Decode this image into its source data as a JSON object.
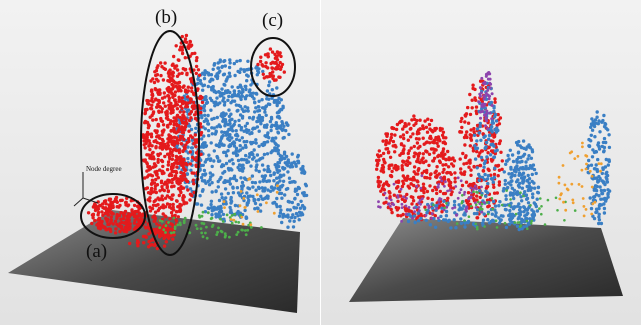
{
  "left_panel": {
    "axis_label": "Node degree",
    "annotations": [
      {
        "id": "a",
        "label": "(a)"
      },
      {
        "id": "b",
        "label": "(b)"
      },
      {
        "id": "c",
        "label": "(c)"
      }
    ]
  },
  "colors": {
    "background": "#eeeeee",
    "surface_dark": "#3a3a3a",
    "surface_light": "#a8a8a8",
    "cluster_red": "#e41a1c",
    "cluster_blue": "#3a7fc4",
    "accent_green": "#4daf4a",
    "accent_purple": "#8e44ad",
    "accent_orange": "#f0a030",
    "ellipse_stroke": "#111111"
  },
  "icons": [
    "node-degree-axis-icon"
  ]
}
